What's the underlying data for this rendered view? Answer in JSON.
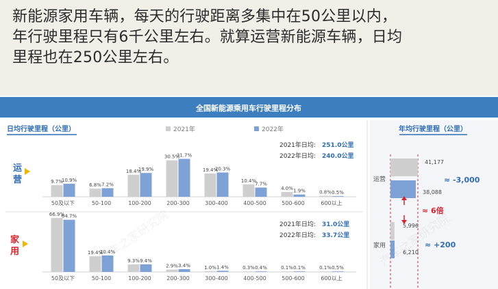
{
  "caption": {
    "line1": "新能源家用车辆，每天的行驶距离多集中在50公里以内，",
    "line2": "年行驶里程只有6千公里左右。就算运营新能源车辆，日均",
    "line3": "里程也在250公里左右。"
  },
  "infographic": {
    "banner_title": "全国新能源乘用车行驶里程分布",
    "watermark": "汽车之家研究院"
  },
  "colors": {
    "y2021": "#cfcfcf",
    "y2022": "#7fa2d6",
    "banner": "#3d7fbe",
    "accent_red": "#d9232d",
    "label_blue": "#2f6db5",
    "arrow": "#f2b600"
  },
  "chart_data": [
    {
      "type": "bar",
      "title": "日均行驶里程（公里）",
      "legend": [
        "2021年",
        "2022年"
      ],
      "categories": [
        "50及以下",
        "50-100",
        "100-200",
        "200-300",
        "300-400",
        "400-500",
        "500-600",
        "600以上"
      ],
      "panels": [
        {
          "label": "运营",
          "series": [
            {
              "name": "2021年",
              "values": [
                9.7,
                6.8,
                18.4,
                30.5,
                19.4,
                10.4,
                4.0,
                0.8
              ],
              "labels": [
                "9.7%",
                "6.8%",
                "18.4%",
                "30.5%",
                "19.4%",
                "10.4%",
                "4.0%",
                "0.8%"
              ]
            },
            {
              "name": "2022年",
              "values": [
                10.9,
                7.2,
                19.9,
                31.7,
                20.3,
                7.7,
                1.9,
                0.5
              ],
              "labels": [
                "10.9%",
                "7.2%",
                "19.9%",
                "31.7%",
                "20.3%",
                "7.7%",
                "1.9%",
                "0.5%"
              ]
            }
          ],
          "averages": [
            {
              "label": "2021年日均:",
              "value": "251.0公里"
            },
            {
              "label": "2022年日均:",
              "value": "240.0公里"
            }
          ]
        },
        {
          "label": "家用",
          "series": [
            {
              "name": "2021年",
              "values": [
                66.9,
                19.4,
                9.3,
                2.9,
                1.0,
                0.3,
                0.1,
                0.1
              ],
              "labels": [
                "66.9%",
                "19.4%",
                "9.3%",
                "2.9%",
                "1.0%",
                "0.3%",
                "0.1%",
                "0.1%"
              ]
            },
            {
              "name": "2022年",
              "values": [
                64.7,
                20.4,
                9.4,
                3.4,
                1.4,
                0.4,
                0.1,
                0.5
              ],
              "labels": [
                "64.7%",
                "20.4%",
                "9.4%",
                "3.4%",
                "1.4%",
                "0.4%",
                "0.1%",
                "0.5%"
              ]
            }
          ],
          "averages": [
            {
              "label": "2021年日均:",
              "value": "31.0公里"
            },
            {
              "label": "2022年日均:",
              "value": "33.7公里"
            }
          ]
        }
      ]
    },
    {
      "type": "bar",
      "title": "年均行驶里程（公里）",
      "rows": [
        {
          "label": "运营",
          "y2021": 41177,
          "y2022": 38088,
          "labels": [
            "41,177",
            "38,088"
          ],
          "change": "≈ -3,000"
        },
        {
          "label": "家用",
          "y2021": 5996,
          "y2022": 6210,
          "labels": [
            "5,996",
            "6,210"
          ],
          "change": "≈ +200"
        }
      ],
      "ratio": "≈ 6倍"
    }
  ]
}
